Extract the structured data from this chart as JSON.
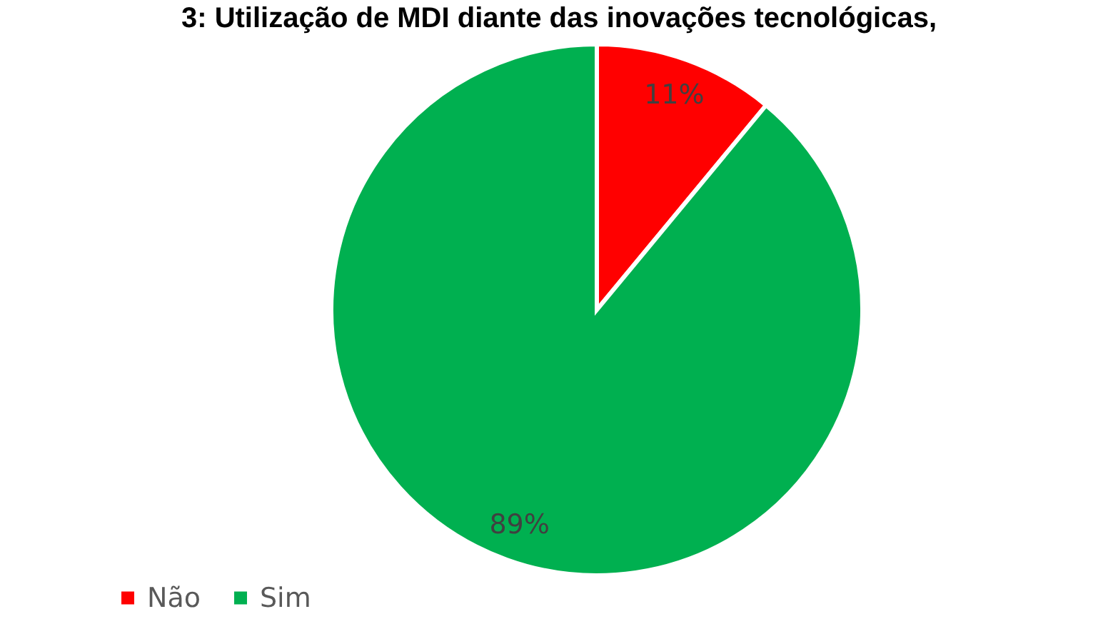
{
  "chart_data": {
    "type": "pie",
    "title": "3: Utilização de MDI diante das inovações tecnológicas,",
    "categories": [
      "Não",
      "Sim"
    ],
    "values": [
      11,
      89
    ],
    "colors": [
      "#ff0000",
      "#00b050"
    ],
    "value_labels": [
      "11%",
      "89%"
    ],
    "legend": "bottom left"
  }
}
